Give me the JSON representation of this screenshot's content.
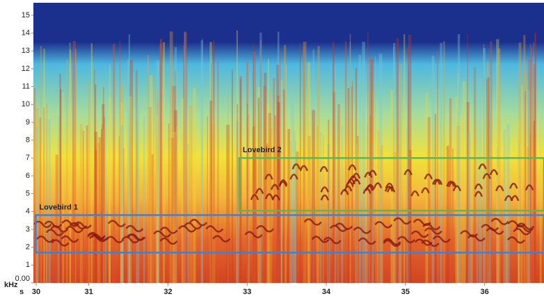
{
  "chart_data": {
    "type": "spectrogram",
    "xlabel": "s",
    "ylabel": "kHz",
    "xlim": [
      30.3,
      36.75
    ],
    "ylim": [
      0,
      15.7
    ],
    "xticks": [
      30,
      31,
      32,
      33,
      34,
      35,
      36
    ],
    "yticks": [
      {
        "value": 0,
        "label": "0.00"
      },
      1,
      2,
      3,
      4,
      5,
      6,
      7,
      8,
      9,
      10,
      11,
      12,
      13,
      14,
      15
    ],
    "annotations": [
      {
        "label": "Lovebird 1",
        "x": [
          30.33,
          36.75
        ],
        "y": [
          1.7,
          3.8
        ],
        "color": "#4a7fc4"
      },
      {
        "label": "Lovebird 2",
        "x": [
          32.9,
          36.75
        ],
        "y": [
          4.05,
          7.0
        ],
        "color": "#6cb24a"
      }
    ]
  }
}
